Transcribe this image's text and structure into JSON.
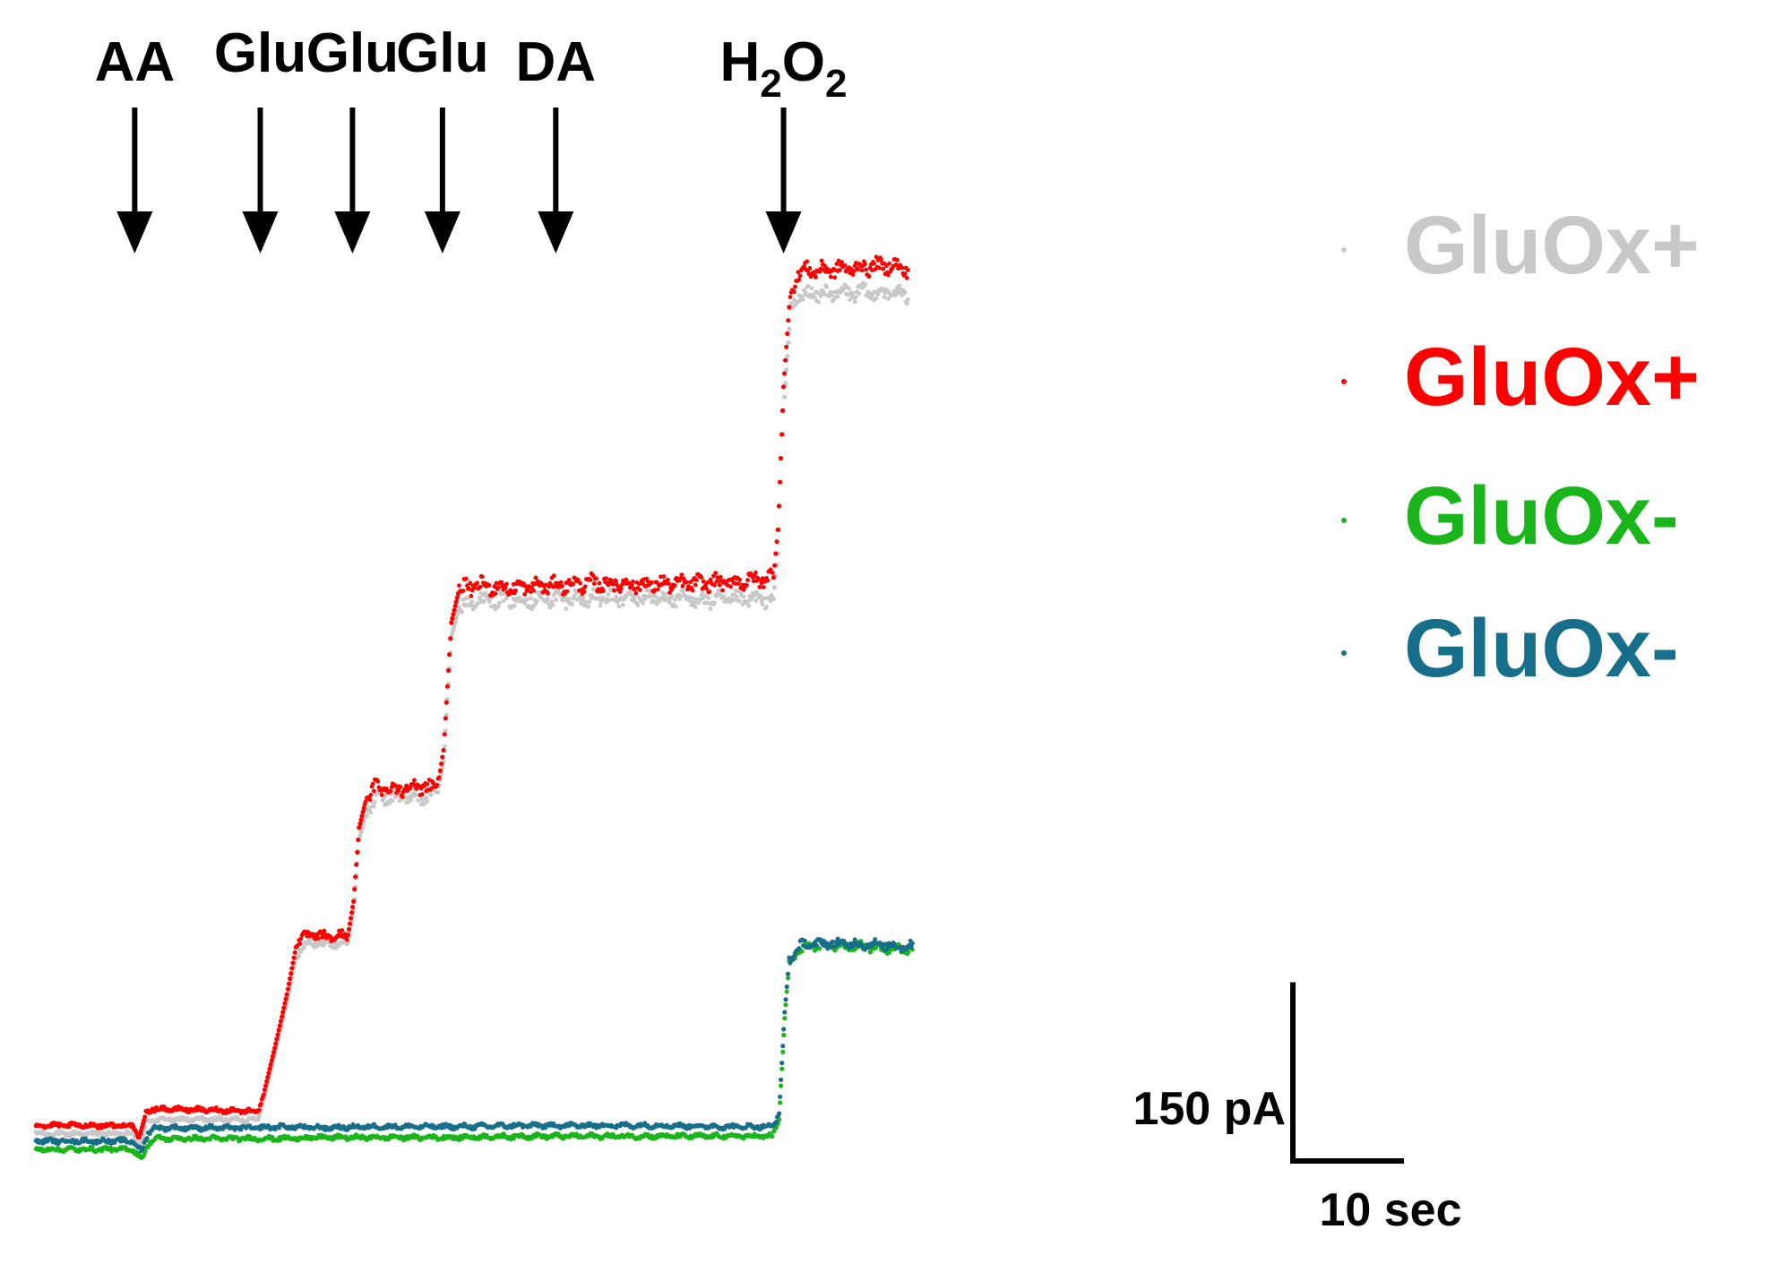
{
  "chart_data": {
    "type": "line",
    "title": "",
    "xlabel": "",
    "ylabel": "",
    "x_unit": "sec",
    "y_unit": "pA",
    "xlim": [
      0,
      80.6
    ],
    "ylim": [
      -10,
      900
    ],
    "grid": false,
    "legend_position": "right",
    "annotations": [
      {
        "label": "AA",
        "sub": "",
        "x": 8.9
      },
      {
        "label": "Glu",
        "sub": "",
        "x": 20.2
      },
      {
        "label": "Glu",
        "sub": "",
        "x": 28.5
      },
      {
        "label": "Glu",
        "sub": "",
        "x": 36.6
      },
      {
        "label": "DA",
        "sub": "",
        "x": 46.8
      },
      {
        "label": "H",
        "sub": "2",
        "label2": "O",
        "sub2": "2",
        "x": 67.3
      }
    ],
    "scale_bar": {
      "y_value": 150,
      "y_label": "150 pA",
      "x_value": 10,
      "x_label": "10 sec"
    },
    "series": [
      {
        "name": "GluOx+",
        "color": "#c8c8c8",
        "points": [
          [
            0,
            13
          ],
          [
            8.7,
            13
          ],
          [
            9.4,
            3
          ],
          [
            9.9,
            22
          ],
          [
            10.5,
            25
          ],
          [
            20.0,
            25
          ],
          [
            20.6,
            45
          ],
          [
            21.5,
            80
          ],
          [
            22.6,
            124
          ],
          [
            23.5,
            165
          ],
          [
            24.6,
            174
          ],
          [
            26.5,
            172
          ],
          [
            28.1,
            174
          ],
          [
            28.6,
            200
          ],
          [
            29.1,
            260
          ],
          [
            29.7,
            282
          ],
          [
            30.7,
            297
          ],
          [
            32.2,
            295
          ],
          [
            33.8,
            296
          ],
          [
            35.5,
            296
          ],
          [
            36.3,
            305
          ],
          [
            36.7,
            325
          ],
          [
            37.4,
            430
          ],
          [
            38.1,
            455
          ],
          [
            40.0,
            462
          ],
          [
            43.0,
            461
          ],
          [
            46.0,
            462
          ],
          [
            50.0,
            462
          ],
          [
            55.0,
            463
          ],
          [
            60.0,
            461
          ],
          [
            63.0,
            461
          ],
          [
            66.4,
            462
          ],
          [
            66.8,
            500
          ],
          [
            67.3,
            620
          ],
          [
            67.9,
            700
          ],
          [
            68.7,
            717
          ],
          [
            71.0,
            718
          ],
          [
            74.0,
            719
          ],
          [
            77.0,
            719
          ],
          [
            78.5,
            717
          ]
        ]
      },
      {
        "name": "GluOx+",
        "color": "#ff0000",
        "points": [
          [
            0,
            20
          ],
          [
            8.7,
            20
          ],
          [
            9.3,
            10
          ],
          [
            9.9,
            30
          ],
          [
            10.5,
            34
          ],
          [
            20.0,
            32
          ],
          [
            20.6,
            50
          ],
          [
            21.5,
            85
          ],
          [
            22.6,
            130
          ],
          [
            23.5,
            174
          ],
          [
            24.6,
            180
          ],
          [
            26.5,
            178
          ],
          [
            28.1,
            180
          ],
          [
            28.6,
            208
          ],
          [
            29.1,
            270
          ],
          [
            29.7,
            293
          ],
          [
            30.7,
            305
          ],
          [
            32.2,
            302
          ],
          [
            33.8,
            305
          ],
          [
            35.5,
            303
          ],
          [
            36.3,
            312
          ],
          [
            36.7,
            335
          ],
          [
            37.4,
            442
          ],
          [
            38.1,
            470
          ],
          [
            40.0,
            473
          ],
          [
            43.0,
            471
          ],
          [
            46.0,
            473
          ],
          [
            50.0,
            475
          ],
          [
            55.0,
            474
          ],
          [
            60.0,
            475
          ],
          [
            63.0,
            476
          ],
          [
            66.4,
            480
          ],
          [
            66.8,
            520
          ],
          [
            67.3,
            640
          ],
          [
            67.9,
            718
          ],
          [
            68.7,
            737
          ],
          [
            71.0,
            738
          ],
          [
            74.0,
            740
          ],
          [
            77.0,
            742
          ],
          [
            78.5,
            738
          ]
        ]
      },
      {
        "name": "GluOx-",
        "color": "#1ab51a",
        "points": [
          [
            0,
            0
          ],
          [
            8.7,
            0
          ],
          [
            9.6,
            -8
          ],
          [
            10.2,
            6
          ],
          [
            10.8,
            9
          ],
          [
            20.0,
            9
          ],
          [
            22.0,
            9
          ],
          [
            26.0,
            10
          ],
          [
            30.0,
            10
          ],
          [
            34.0,
            10
          ],
          [
            38.0,
            10
          ],
          [
            44.0,
            11
          ],
          [
            50.0,
            11
          ],
          [
            56.0,
            11
          ],
          [
            62.0,
            11
          ],
          [
            66.3,
            11
          ],
          [
            66.9,
            25
          ],
          [
            67.4,
            110
          ],
          [
            67.8,
            155
          ],
          [
            68.7,
            168
          ],
          [
            71.0,
            171
          ],
          [
            75.0,
            170
          ],
          [
            78.9,
            168
          ]
        ]
      },
      {
        "name": "GluOx-",
        "color": "#176e8a",
        "points": [
          [
            0,
            7
          ],
          [
            8.7,
            7
          ],
          [
            9.5,
            -2
          ],
          [
            10.1,
            14
          ],
          [
            10.7,
            18
          ],
          [
            20.0,
            18
          ],
          [
            22.0,
            19
          ],
          [
            26.0,
            18
          ],
          [
            30.0,
            19
          ],
          [
            34.0,
            19
          ],
          [
            38.0,
            19
          ],
          [
            44.0,
            20
          ],
          [
            50.0,
            20
          ],
          [
            56.0,
            20
          ],
          [
            62.0,
            19
          ],
          [
            66.3,
            19
          ],
          [
            66.9,
            30
          ],
          [
            67.4,
            115
          ],
          [
            67.8,
            158
          ],
          [
            68.7,
            171
          ],
          [
            71.0,
            173
          ],
          [
            75.0,
            172
          ],
          [
            78.9,
            170
          ]
        ]
      }
    ]
  }
}
